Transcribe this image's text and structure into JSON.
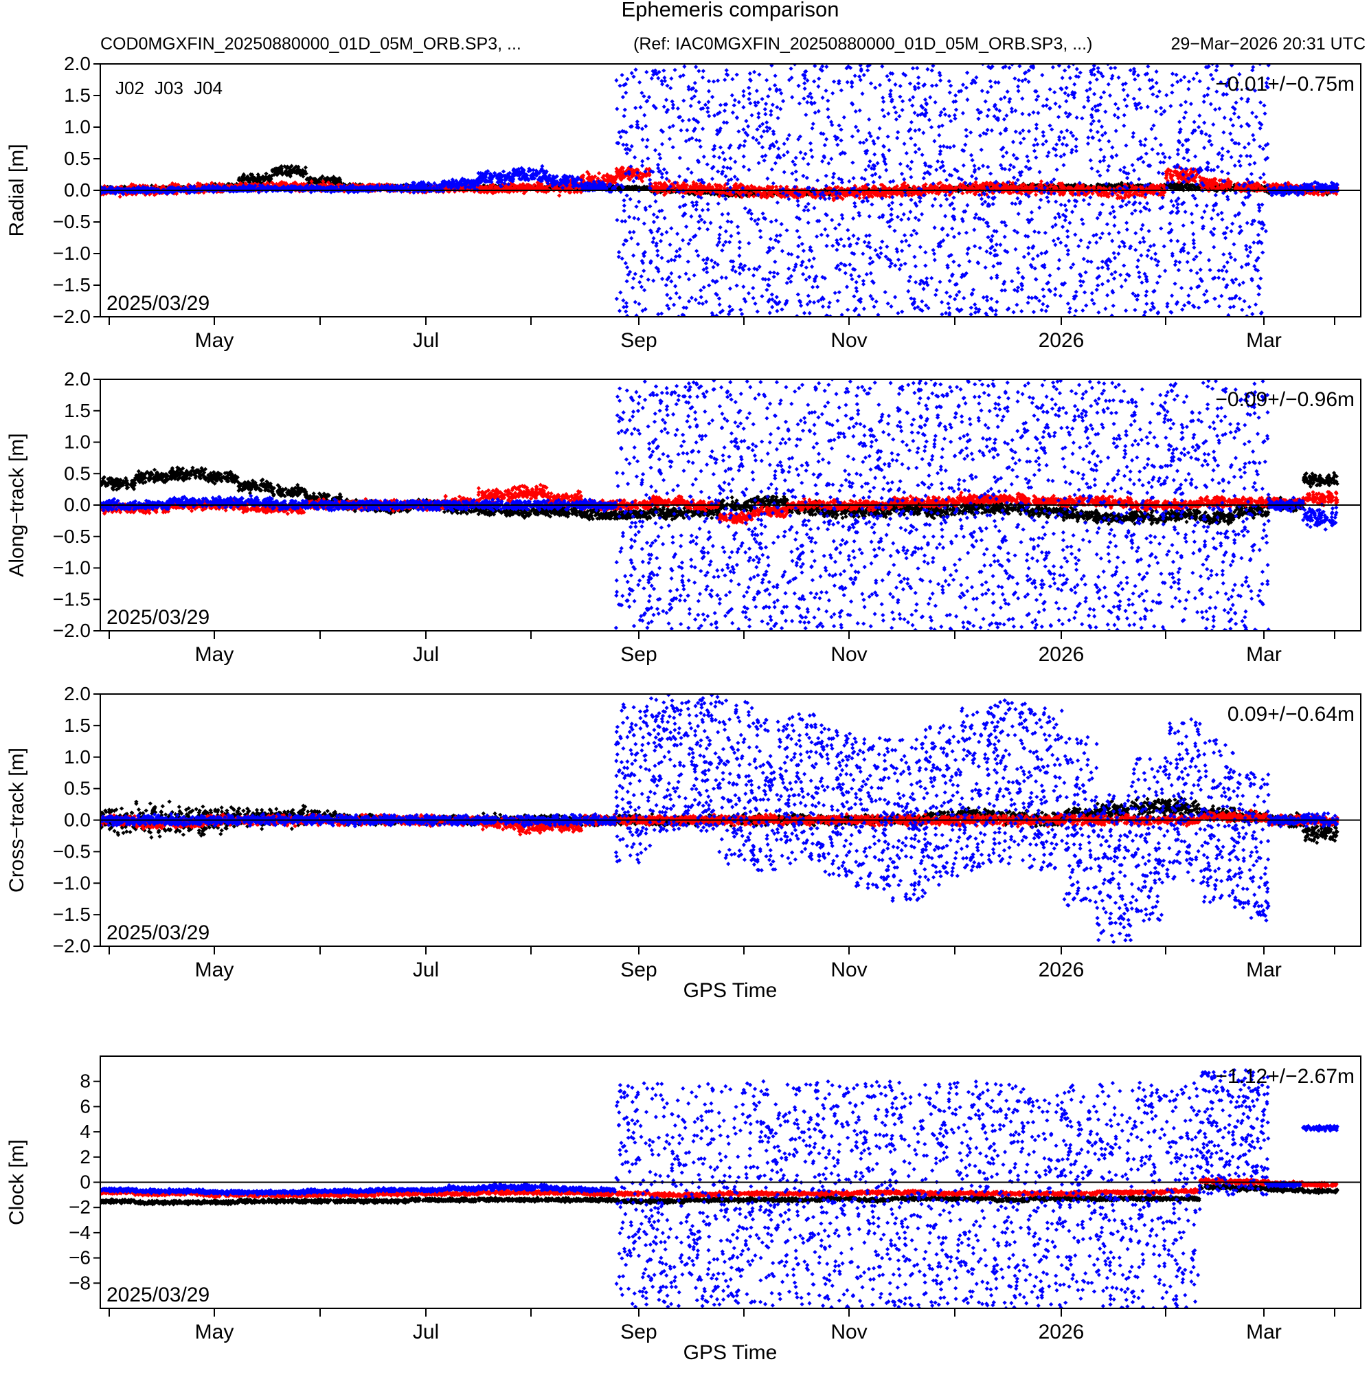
{
  "header": {
    "title": "Ephemeris comparison",
    "left_file": "COD0MGXFIN_20250880000_01D_05M_ORB.SP3, ...",
    "ref_file": "(Ref: IAC0MGXFIN_20250880000_01D_05M_ORB.SP3, ...)",
    "timestamp": "29−Mar−2026 20:31 UTC"
  },
  "legend": [
    {
      "label": "J02",
      "color": "#000000"
    },
    {
      "label": "J03",
      "color": "#ff0000"
    },
    {
      "label": "J04",
      "color": "#0000ff"
    }
  ],
  "chart_data": [
    {
      "type": "scatter",
      "ylabel": "Radial [m]",
      "ylim": [
        -2.0,
        2.0
      ],
      "yticks": [
        "−2.0",
        "−1.5",
        "−1.0",
        "−0.5",
        "0.0",
        "0.5",
        "1.0",
        "1.5",
        "2.0"
      ],
      "xticks": [
        "May",
        "Jul",
        "Sep",
        "Nov",
        "2026",
        "Mar"
      ],
      "date_label": "2025/03/29",
      "stat": "−0.01+/−0.75m",
      "xlabel": "",
      "series": [
        {
          "name": "J02",
          "color": "#000000",
          "offsets": [
            0.01,
            0.02,
            0.03,
            0.05,
            0.18,
            0.3,
            0.15,
            0.06,
            0.05,
            0.04,
            0.04,
            0.05,
            0.04,
            0.05,
            0.06,
            0.04,
            0.0,
            -0.03,
            -0.05,
            -0.05,
            -0.04,
            -0.03,
            -0.01,
            0.0,
            0.02,
            0.04,
            0.05,
            0.05,
            0.04,
            0.06,
            0.05,
            0.06,
            0.04,
            0.03,
            0.01,
            0.0
          ],
          "spread": [
            0.05,
            0.05,
            0.05,
            0.06,
            0.08,
            0.08,
            0.06,
            0.04,
            0.04,
            0.04,
            0.03,
            0.03,
            0.03,
            0.03,
            0.03,
            0.03,
            0.03,
            0.04,
            0.04,
            0.04,
            0.04,
            0.04,
            0.04,
            0.04,
            0.04,
            0.05,
            0.05,
            0.05,
            0.05,
            0.05,
            0.05,
            0.05,
            0.05,
            0.05,
            0.05,
            0.05
          ]
        },
        {
          "name": "J03",
          "color": "#ff0000",
          "offsets": [
            0.0,
            0.0,
            0.02,
            0.04,
            0.06,
            0.06,
            0.05,
            0.04,
            0.04,
            0.03,
            0.03,
            0.04,
            0.04,
            0.05,
            0.15,
            0.25,
            0.05,
            0.02,
            0.0,
            -0.02,
            -0.04,
            -0.03,
            -0.02,
            0.0,
            0.02,
            0.04,
            0.03,
            0.02,
            0.0,
            -0.02,
            0.0,
            0.25,
            0.1,
            0.05,
            0.03,
            0.0
          ],
          "spread": [
            0.08,
            0.08,
            0.08,
            0.08,
            0.08,
            0.08,
            0.07,
            0.06,
            0.06,
            0.06,
            0.06,
            0.08,
            0.08,
            0.12,
            0.12,
            0.1,
            0.1,
            0.1,
            0.1,
            0.1,
            0.1,
            0.1,
            0.1,
            0.1,
            0.1,
            0.1,
            0.1,
            0.1,
            0.1,
            0.1,
            0.1,
            0.12,
            0.1,
            0.08,
            0.08,
            0.08
          ]
        },
        {
          "name": "J04",
          "color": "#0000ff",
          "offsets": [
            0.0,
            0.0,
            0.01,
            0.02,
            0.03,
            0.03,
            0.02,
            0.02,
            0.03,
            0.05,
            0.1,
            0.2,
            0.25,
            0.15,
            0.05,
            0.0,
            0.0,
            0.0,
            0.0,
            0.0,
            0.0,
            0.0,
            0.0,
            0.0,
            0.0,
            0.0,
            0.0,
            0.0,
            0.0,
            0.0,
            0.0,
            0.0,
            0.0,
            0.0,
            0.0,
            0.05
          ],
          "spread": [
            0.05,
            0.05,
            0.05,
            0.05,
            0.05,
            0.05,
            0.05,
            0.05,
            0.06,
            0.08,
            0.1,
            0.12,
            0.12,
            0.1,
            0.08,
            2.0,
            2.0,
            2.0,
            2.0,
            2.0,
            2.0,
            2.0,
            2.0,
            2.0,
            2.0,
            2.0,
            2.0,
            2.0,
            2.0,
            2.0,
            2.0,
            2.0,
            2.0,
            2.0,
            0.08,
            0.08
          ]
        }
      ]
    },
    {
      "type": "scatter",
      "ylabel": "Along−track [m]",
      "ylim": [
        -2.0,
        2.0
      ],
      "yticks": [
        "−2.0",
        "−1.5",
        "−1.0",
        "−0.5",
        "0.0",
        "0.5",
        "1.0",
        "1.5",
        "2.0"
      ],
      "xticks": [
        "May",
        "Jul",
        "Sep",
        "Nov",
        "2026",
        "Mar"
      ],
      "date_label": "2025/03/29",
      "stat": "−0.09+/−0.96m",
      "xlabel": "",
      "series": [
        {
          "name": "J02",
          "color": "#000000",
          "offsets": [
            0.35,
            0.45,
            0.5,
            0.45,
            0.3,
            0.2,
            0.1,
            0.0,
            -0.05,
            0.0,
            -0.05,
            -0.1,
            -0.1,
            -0.1,
            -0.15,
            -0.15,
            -0.12,
            -0.1,
            0.0,
            0.05,
            -0.05,
            -0.1,
            -0.1,
            -0.05,
            -0.1,
            -0.05,
            -0.05,
            -0.1,
            -0.15,
            -0.2,
            -0.2,
            -0.15,
            -0.2,
            -0.1,
            0.0,
            0.4
          ],
          "spread": [
            0.1,
            0.1,
            0.1,
            0.1,
            0.1,
            0.1,
            0.08,
            0.08,
            0.08,
            0.08,
            0.08,
            0.08,
            0.08,
            0.08,
            0.08,
            0.1,
            0.1,
            0.1,
            0.1,
            0.1,
            0.1,
            0.1,
            0.1,
            0.1,
            0.1,
            0.1,
            0.1,
            0.1,
            0.1,
            0.1,
            0.1,
            0.1,
            0.1,
            0.1,
            0.1,
            0.1
          ]
        },
        {
          "name": "J03",
          "color": "#ff0000",
          "offsets": [
            -0.05,
            -0.05,
            0.0,
            0.0,
            -0.05,
            -0.05,
            0.0,
            0.0,
            0.0,
            0.0,
            0.05,
            0.15,
            0.2,
            0.1,
            0.0,
            0.0,
            0.05,
            0.0,
            -0.2,
            -0.1,
            0.0,
            0.0,
            0.0,
            0.05,
            0.05,
            0.1,
            0.1,
            0.05,
            0.05,
            0.05,
            0.0,
            0.0,
            0.05,
            0.05,
            0.05,
            0.1
          ],
          "spread": [
            0.08,
            0.08,
            0.08,
            0.08,
            0.08,
            0.08,
            0.08,
            0.08,
            0.08,
            0.08,
            0.08,
            0.1,
            0.12,
            0.1,
            0.08,
            0.08,
            0.08,
            0.08,
            0.1,
            0.1,
            0.08,
            0.08,
            0.08,
            0.08,
            0.08,
            0.08,
            0.08,
            0.08,
            0.08,
            0.08,
            0.08,
            0.08,
            0.08,
            0.08,
            0.08,
            0.1
          ]
        },
        {
          "name": "J04",
          "color": "#0000ff",
          "offsets": [
            0.0,
            0.0,
            0.05,
            0.05,
            0.05,
            0.0,
            0.0,
            0.0,
            0.0,
            0.0,
            0.0,
            0.0,
            0.0,
            0.0,
            0.0,
            0.0,
            0.0,
            0.0,
            0.0,
            0.0,
            0.0,
            0.0,
            0.0,
            0.0,
            0.0,
            0.0,
            0.0,
            0.0,
            0.0,
            0.0,
            0.0,
            0.0,
            0.0,
            0.0,
            0.0,
            -0.2
          ],
          "spread": [
            0.08,
            0.08,
            0.08,
            0.08,
            0.08,
            0.08,
            0.08,
            0.08,
            0.08,
            0.08,
            0.08,
            0.08,
            0.08,
            0.08,
            0.08,
            2.0,
            2.0,
            2.0,
            2.0,
            2.0,
            2.0,
            2.0,
            2.0,
            2.0,
            2.0,
            2.0,
            2.0,
            2.0,
            2.0,
            2.0,
            2.0,
            2.0,
            2.0,
            2.0,
            0.1,
            0.2
          ]
        }
      ]
    },
    {
      "type": "scatter",
      "ylabel": "Cross−track [m]",
      "ylim": [
        -2.0,
        2.0
      ],
      "yticks": [
        "−2.0",
        "−1.5",
        "−1.0",
        "−0.5",
        "0.0",
        "0.5",
        "1.0",
        "1.5",
        "2.0"
      ],
      "xticks": [
        "May",
        "Jul",
        "Sep",
        "Nov",
        "2026",
        "Mar"
      ],
      "date_label": "2025/03/29",
      "stat": "0.09+/−0.64m",
      "xlabel": "GPS Time",
      "series": [
        {
          "name": "J02",
          "color": "#000000",
          "offsets": [
            0.0,
            0.0,
            0.0,
            0.0,
            0.05,
            0.05,
            0.05,
            0.0,
            0.0,
            0.0,
            0.0,
            0.0,
            0.0,
            0.0,
            0.0,
            0.0,
            0.0,
            0.0,
            0.0,
            0.0,
            0.0,
            0.0,
            0.0,
            0.0,
            0.05,
            0.1,
            0.05,
            0.0,
            0.1,
            0.15,
            0.2,
            0.2,
            0.1,
            0.05,
            0.0,
            -0.2
          ],
          "spread": [
            0.2,
            0.25,
            0.25,
            0.2,
            0.15,
            0.15,
            0.1,
            0.08,
            0.08,
            0.08,
            0.08,
            0.08,
            0.08,
            0.08,
            0.08,
            0.08,
            0.08,
            0.08,
            0.08,
            0.08,
            0.08,
            0.08,
            0.08,
            0.08,
            0.1,
            0.1,
            0.1,
            0.1,
            0.1,
            0.15,
            0.15,
            0.15,
            0.1,
            0.1,
            0.1,
            0.15
          ]
        },
        {
          "name": "J03",
          "color": "#ff0000",
          "offsets": [
            0.0,
            -0.05,
            -0.05,
            0.0,
            0.0,
            0.0,
            0.0,
            0.0,
            0.0,
            0.0,
            0.0,
            -0.05,
            -0.1,
            -0.1,
            0.0,
            0.0,
            0.0,
            0.0,
            0.0,
            0.0,
            0.0,
            0.0,
            0.0,
            0.0,
            0.0,
            0.0,
            0.0,
            0.0,
            0.0,
            0.0,
            0.0,
            0.0,
            0.05,
            0.05,
            0.0,
            0.0
          ],
          "spread": [
            0.08,
            0.08,
            0.08,
            0.08,
            0.08,
            0.08,
            0.08,
            0.08,
            0.08,
            0.08,
            0.08,
            0.1,
            0.12,
            0.1,
            0.08,
            0.08,
            0.08,
            0.08,
            0.08,
            0.08,
            0.08,
            0.08,
            0.08,
            0.08,
            0.08,
            0.08,
            0.08,
            0.08,
            0.08,
            0.08,
            0.08,
            0.08,
            0.08,
            0.08,
            0.08,
            0.08
          ]
        },
        {
          "name": "J04",
          "color": "#0000ff",
          "offsets": [
            0.0,
            0.0,
            0.0,
            0.0,
            0.0,
            0.0,
            0.0,
            0.0,
            0.0,
            0.0,
            0.0,
            0.0,
            0.0,
            0.0,
            0.0,
            0.6,
            0.9,
            0.9,
            0.6,
            0.4,
            0.5,
            0.3,
            0.1,
            0.0,
            0.2,
            0.5,
            0.6,
            0.5,
            0.0,
            -0.8,
            -0.3,
            0.3,
            0.0,
            -0.4,
            0.0,
            0.0
          ],
          "spread": [
            0.08,
            0.08,
            0.08,
            0.08,
            0.08,
            0.08,
            0.08,
            0.08,
            0.08,
            0.08,
            0.08,
            0.08,
            0.08,
            0.08,
            0.08,
            1.3,
            1.1,
            1.1,
            1.3,
            1.2,
            1.2,
            1.2,
            1.2,
            1.3,
            1.3,
            1.3,
            1.3,
            1.3,
            1.4,
            1.2,
            1.3,
            1.3,
            1.3,
            1.2,
            0.1,
            0.1
          ]
        }
      ]
    },
    {
      "type": "scatter",
      "ylabel": "Clock [m]",
      "ylim": [
        -10.0,
        10.0
      ],
      "yticks": [
        "−8",
        "−6",
        "−4",
        "−2",
        "0",
        "2",
        "4",
        "6",
        "8"
      ],
      "xticks": [
        "May",
        "Jul",
        "Sep",
        "Nov",
        "2026",
        "Mar"
      ],
      "date_label": "2025/03/29",
      "stat": "−1.12+/−2.67m",
      "xlabel": "GPS Time",
      "series": [
        {
          "name": "J02",
          "color": "#000000",
          "offsets": [
            -1.5,
            -1.6,
            -1.6,
            -1.6,
            -1.5,
            -1.5,
            -1.5,
            -1.5,
            -1.5,
            -1.4,
            -1.4,
            -1.4,
            -1.4,
            -1.4,
            -1.4,
            -1.5,
            -1.5,
            -1.4,
            -1.4,
            -1.4,
            -1.4,
            -1.3,
            -1.4,
            -1.3,
            -1.3,
            -1.3,
            -1.4,
            -1.3,
            -1.3,
            -1.3,
            -1.3,
            -1.3,
            -0.4,
            -0.5,
            -0.6,
            -0.7
          ],
          "spread": [
            0.15,
            0.15,
            0.15,
            0.15,
            0.15,
            0.15,
            0.15,
            0.15,
            0.15,
            0.15,
            0.15,
            0.15,
            0.15,
            0.15,
            0.15,
            0.15,
            0.15,
            0.15,
            0.15,
            0.15,
            0.15,
            0.15,
            0.15,
            0.15,
            0.15,
            0.15,
            0.15,
            0.15,
            0.15,
            0.15,
            0.15,
            0.15,
            0.2,
            0.2,
            0.15,
            0.15
          ]
        },
        {
          "name": "J03",
          "color": "#ff0000",
          "offsets": [
            -0.8,
            -0.9,
            -0.9,
            -1.0,
            -1.0,
            -1.0,
            -1.0,
            -1.0,
            -0.9,
            -0.9,
            -0.9,
            -0.8,
            -0.8,
            -0.8,
            -0.9,
            -0.9,
            -1.0,
            -1.0,
            -0.9,
            -0.9,
            -0.9,
            -0.9,
            -0.8,
            -0.8,
            -0.9,
            -0.9,
            -0.9,
            -0.9,
            -0.9,
            -0.8,
            -0.8,
            -0.7,
            0.1,
            0.0,
            -0.1,
            -0.2
          ],
          "spread": [
            0.15,
            0.15,
            0.15,
            0.15,
            0.15,
            0.15,
            0.15,
            0.15,
            0.15,
            0.15,
            0.15,
            0.15,
            0.15,
            0.15,
            0.15,
            0.15,
            0.15,
            0.15,
            0.15,
            0.15,
            0.15,
            0.15,
            0.15,
            0.15,
            0.15,
            0.15,
            0.15,
            0.15,
            0.15,
            0.15,
            0.15,
            0.15,
            0.2,
            0.2,
            0.15,
            0.15
          ]
        },
        {
          "name": "J04",
          "color": "#0000ff",
          "offsets": [
            -0.6,
            -0.7,
            -0.7,
            -0.8,
            -0.8,
            -0.8,
            -0.7,
            -0.7,
            -0.6,
            -0.6,
            -0.5,
            -0.4,
            -0.4,
            -0.5,
            -0.6,
            -1.0,
            -1.0,
            -1.0,
            -1.0,
            -1.0,
            -1.0,
            -1.0,
            -1.0,
            -1.0,
            -1.0,
            -1.0,
            -1.0,
            -1.0,
            -1.0,
            -1.0,
            -1.0,
            -1.0,
            4.0,
            4.0,
            -0.2,
            4.3
          ],
          "spread": [
            0.15,
            0.15,
            0.15,
            0.15,
            0.15,
            0.15,
            0.15,
            0.15,
            0.15,
            0.15,
            0.2,
            0.25,
            0.25,
            0.2,
            0.15,
            9.0,
            9.0,
            9.0,
            9.0,
            9.0,
            9.0,
            9.0,
            9.0,
            9.0,
            9.0,
            9.0,
            9.0,
            9.0,
            9.0,
            9.0,
            9.0,
            9.0,
            5.0,
            5.0,
            0.2,
            0.2
          ]
        }
      ]
    }
  ]
}
